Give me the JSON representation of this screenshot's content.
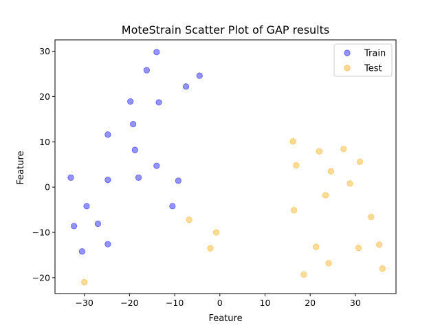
{
  "chart_data": {
    "type": "scatter",
    "title": "MoteStrain Scatter Plot of GAP results",
    "xlabel": "Feature",
    "ylabel": "Feature",
    "xlim": [
      -36.5,
      39
    ],
    "ylim": [
      -23.5,
      32.5
    ],
    "xticks": [
      -30,
      -20,
      -10,
      0,
      10,
      20,
      30
    ],
    "yticks": [
      -20,
      -10,
      0,
      10,
      20,
      30
    ],
    "grid": false,
    "legend_position": "top-right",
    "series": [
      {
        "name": "Train",
        "color": "#0000ff",
        "points": [
          [
            -14,
            29.8
          ],
          [
            -16.2,
            25.8
          ],
          [
            -4.5,
            24.6
          ],
          [
            -7.5,
            22.2
          ],
          [
            -19.8,
            18.9
          ],
          [
            -13.5,
            18.7
          ],
          [
            -19.2,
            13.9
          ],
          [
            -24.8,
            11.6
          ],
          [
            -18.8,
            8.2
          ],
          [
            -14,
            4.7
          ],
          [
            -33,
            2.1
          ],
          [
            -18,
            2.1
          ],
          [
            -24.8,
            1.6
          ],
          [
            -9.2,
            1.4
          ],
          [
            -29.5,
            -4.2
          ],
          [
            -10.5,
            -4.2
          ],
          [
            -32.3,
            -8.6
          ],
          [
            -27,
            -8.1
          ],
          [
            -24.8,
            -12.6
          ],
          [
            -30.5,
            -14.2
          ]
        ]
      },
      {
        "name": "Test",
        "color": "#ffa500",
        "points": [
          [
            16.2,
            10.1
          ],
          [
            22,
            7.9
          ],
          [
            27.4,
            8.4
          ],
          [
            16.9,
            4.8
          ],
          [
            31,
            5.6
          ],
          [
            24.6,
            3.5
          ],
          [
            28.8,
            0.8
          ],
          [
            23.4,
            -1.8
          ],
          [
            16.4,
            -5.1
          ],
          [
            33.5,
            -6.6
          ],
          [
            -6.8,
            -7.2
          ],
          [
            -0.8,
            -10
          ],
          [
            21.3,
            -13.2
          ],
          [
            -2.1,
            -13.5
          ],
          [
            30.7,
            -13.4
          ],
          [
            35.3,
            -12.7
          ],
          [
            24.1,
            -16.8
          ],
          [
            36,
            -18
          ],
          [
            18.6,
            -19.3
          ],
          [
            -30,
            -21
          ]
        ]
      }
    ]
  }
}
